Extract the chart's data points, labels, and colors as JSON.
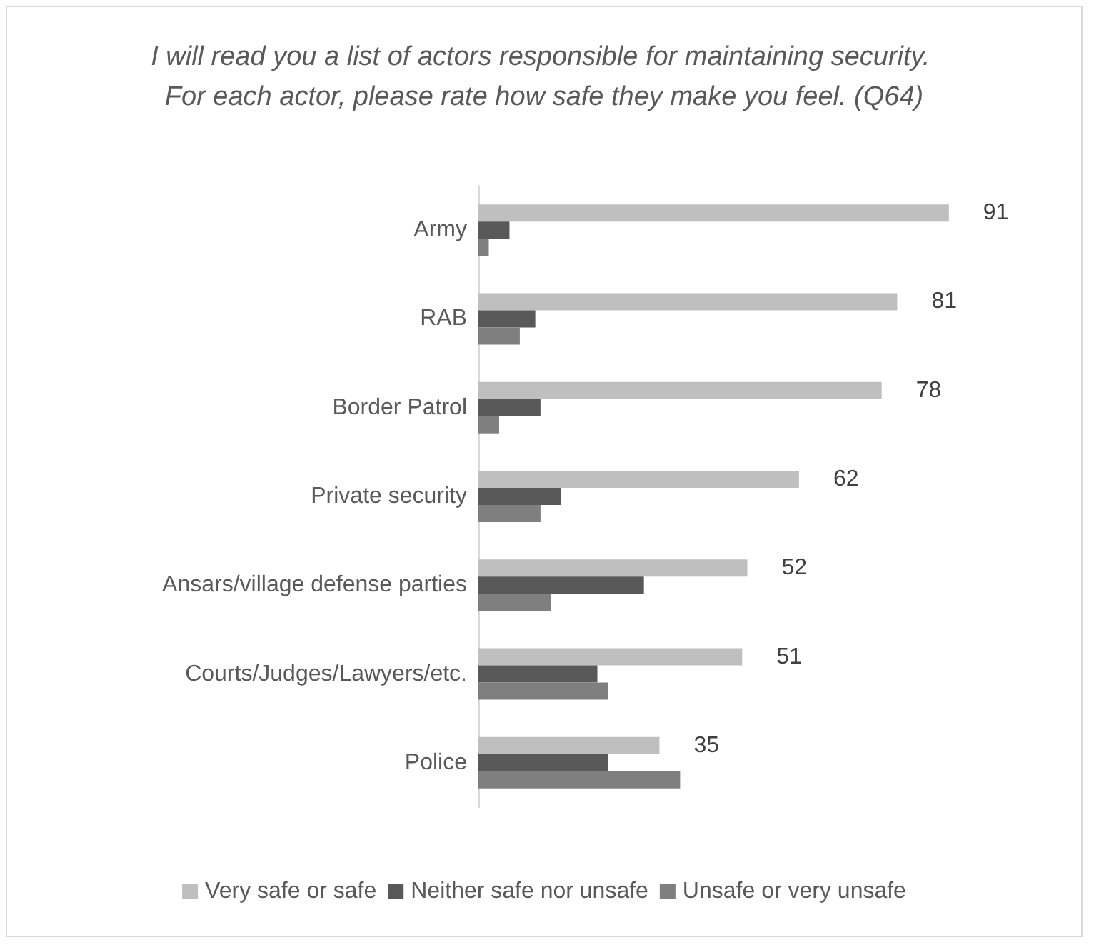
{
  "chart_data": {
    "type": "bar",
    "orientation": "horizontal",
    "title": "I will read you a list of actors responsible for maintaining security. For each actor, please rate how safe they make you feel. (Q64)",
    "categories": [
      "Army",
      "RAB",
      "Border Patrol",
      "Private security",
      "Ansars/village defense parties",
      "Courts/Judges/Lawyers/etc.",
      "Police"
    ],
    "series": [
      {
        "name": "Very safe or safe",
        "color": "#bfbfbf",
        "values": [
          91,
          81,
          78,
          62,
          52,
          51,
          35
        ],
        "value_labels": [
          "91",
          "81",
          "78",
          "62",
          "52",
          "51",
          "35"
        ]
      },
      {
        "name": "Neither safe nor unsafe",
        "color": "#595959",
        "values": [
          6,
          11,
          12,
          16,
          32,
          23,
          25
        ]
      },
      {
        "name": "Unsafe or very unsafe",
        "color": "#7f7f7f",
        "values": [
          2,
          8,
          4,
          12,
          14,
          25,
          39
        ]
      }
    ],
    "legend": "bottom"
  }
}
